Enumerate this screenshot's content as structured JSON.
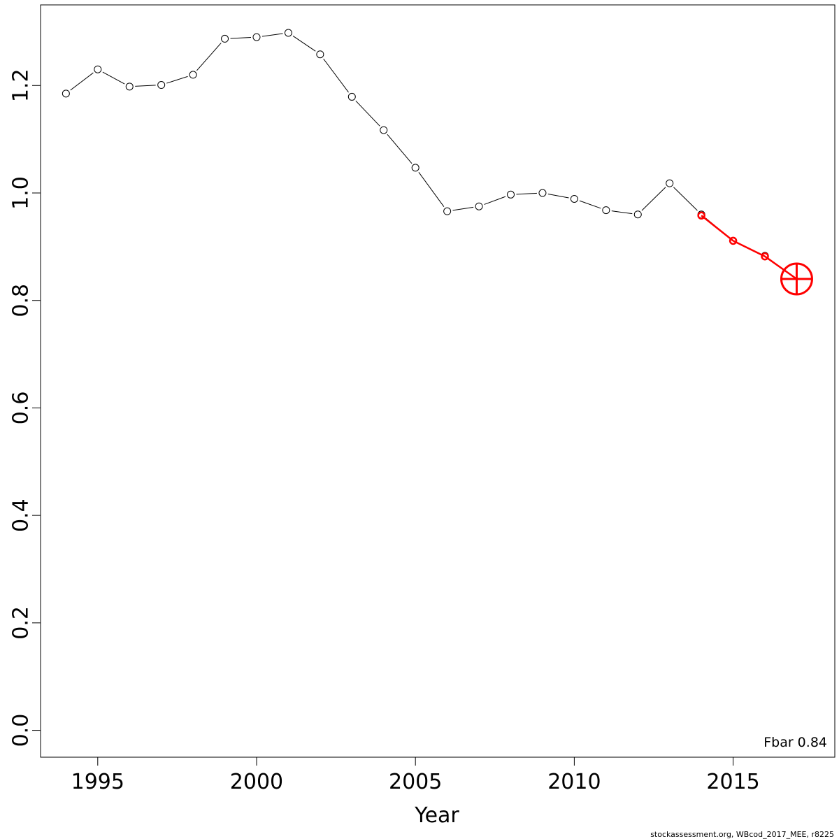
{
  "chart_data": {
    "type": "line",
    "xlabel": "Year",
    "ylabel": "",
    "xlim": [
      1993.2,
      2018.2
    ],
    "ylim": [
      -0.05,
      1.35
    ],
    "xticks": [
      1995,
      2000,
      2005,
      2010,
      2015
    ],
    "yticks": [
      0.0,
      0.2,
      0.4,
      0.6,
      0.8,
      1.0,
      1.2
    ],
    "ytick_labels": [
      "0.0",
      "0.2",
      "0.4",
      "0.6",
      "0.8",
      "1.0",
      "1.2"
    ],
    "grid": false,
    "series": [
      {
        "color": "#000000",
        "marker": "open-circle",
        "x": [
          1994,
          1995,
          1996,
          1997,
          1998,
          1999,
          2000,
          2001,
          2002,
          2003,
          2004,
          2005,
          2006,
          2007,
          2008,
          2009,
          2010,
          2011,
          2012,
          2013,
          2014,
          2015,
          2016
        ],
        "y": [
          1.185,
          1.23,
          1.198,
          1.201,
          1.22,
          1.287,
          1.29,
          1.298,
          1.258,
          1.179,
          1.117,
          1.047,
          0.966,
          0.975,
          0.997,
          1.0,
          0.989,
          0.968,
          0.96,
          1.018,
          0.96,
          0.911,
          0.883
        ]
      },
      {
        "color": "#ff0000",
        "marker": "open-circle",
        "x": [
          2014,
          2015,
          2016,
          2017
        ],
        "y": [
          0.958,
          0.911,
          0.882,
          0.84
        ]
      }
    ],
    "highlight": {
      "x": 2017,
      "y": 0.84,
      "color": "#ff0000",
      "marker": "crosshair-circle"
    },
    "annotation": "Fbar 0.84"
  },
  "footer": "stockassessment.org, WBcod_2017_MEE, r8225"
}
